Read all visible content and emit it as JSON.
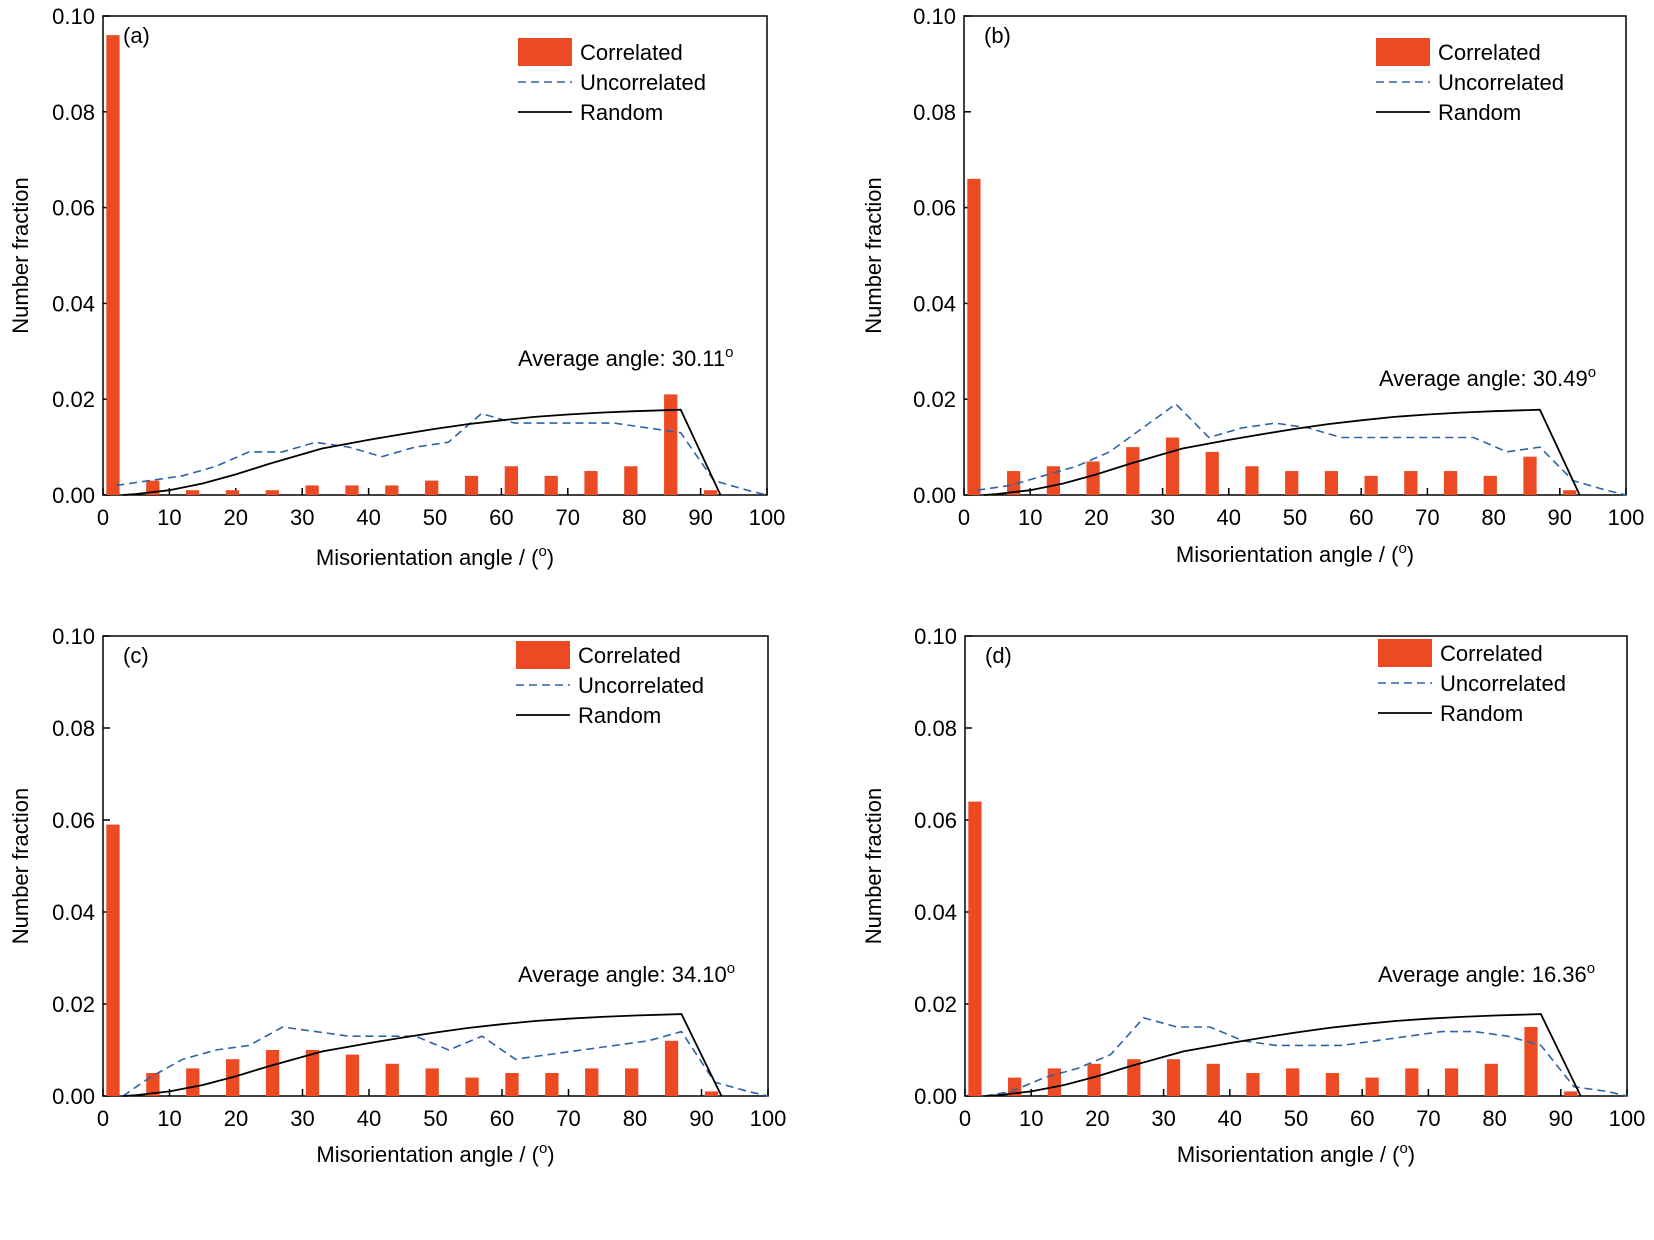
{
  "colors": {
    "correlated": "#ec4a23",
    "uncorrelated": "#2e63a6",
    "random": "#000000",
    "axis": "#000000"
  },
  "chart_data": [
    {
      "type": "bar",
      "panel_label": "(a)",
      "xlabel": "Misorientation angle / (",
      "xlabel_sup": "o",
      "xlabel_tail": ")",
      "ylabel": "Number fraction",
      "xlim": [
        0,
        100
      ],
      "ylim": [
        0,
        0.1
      ],
      "xticks": [
        "0",
        "10",
        "20",
        "30",
        "40",
        "50",
        "60",
        "70",
        "80",
        "90",
        "100"
      ],
      "yticks": [
        "0.00",
        "0.02",
        "0.04",
        "0.06",
        "0.08",
        "0.10"
      ],
      "legend": [
        {
          "name": "Correlated",
          "style": "bar"
        },
        {
          "name": "Uncorrelated",
          "style": "dashed"
        },
        {
          "name": "Random",
          "style": "solid"
        }
      ],
      "annotation": "Average angle: 30.11",
      "annotation_sup": "o",
      "series": [
        {
          "name": "Correlated",
          "kind": "bar",
          "x": [
            1.5,
            7.5,
            13.5,
            19.5,
            25.5,
            31.5,
            37.5,
            43.5,
            49.5,
            55.5,
            61.5,
            67.5,
            73.5,
            79.5,
            85.5,
            91.5
          ],
          "values": [
            0.096,
            0.003,
            0.001,
            0.001,
            0.001,
            0.002,
            0.002,
            0.002,
            0.003,
            0.004,
            0.006,
            0.004,
            0.005,
            0.006,
            0.021,
            0.001
          ]
        },
        {
          "name": "Uncorrelated",
          "kind": "line",
          "x": [
            2,
            7,
            12,
            17,
            22,
            27,
            32,
            37,
            42,
            47,
            52,
            57,
            62,
            67,
            72,
            77,
            82,
            87,
            92,
            97,
            100
          ],
          "values": [
            0.002,
            0.003,
            0.004,
            0.006,
            0.009,
            0.009,
            0.011,
            0.01,
            0.008,
            0.01,
            0.011,
            0.017,
            0.015,
            0.015,
            0.015,
            0.015,
            0.014,
            0.013,
            0.003,
            0.001,
            0
          ]
        },
        {
          "name": "Random",
          "kind": "line",
          "x": [
            3,
            5,
            10,
            15,
            20,
            25,
            30,
            33,
            40,
            45,
            50,
            55,
            60,
            65,
            70,
            75,
            80,
            87,
            93
          ],
          "values": [
            0,
            0.0002,
            0.001,
            0.0024,
            0.0043,
            0.0065,
            0.0085,
            0.0097,
            0.0115,
            0.0127,
            0.0138,
            0.0148,
            0.0156,
            0.0163,
            0.0168,
            0.0172,
            0.0175,
            0.0178,
            0
          ]
        }
      ]
    },
    {
      "type": "bar",
      "panel_label": "(b)",
      "xlabel": "Misorientation angle / (",
      "xlabel_sup": "o",
      "xlabel_tail": ")",
      "ylabel": "Number fraction",
      "xlim": [
        0,
        100
      ],
      "ylim": [
        0,
        0.1
      ],
      "xticks": [
        "0",
        "10",
        "20",
        "30",
        "40",
        "50",
        "60",
        "70",
        "80",
        "90",
        "100"
      ],
      "yticks": [
        "0.00",
        "0.02",
        "0.04",
        "0.06",
        "0.08",
        "0.10"
      ],
      "legend": [
        {
          "name": "Correlated",
          "style": "bar"
        },
        {
          "name": "Uncorrelated",
          "style": "dashed"
        },
        {
          "name": "Random",
          "style": "solid"
        }
      ],
      "annotation": "Average angle: 30.49",
      "annotation_sup": "o",
      "series": [
        {
          "name": "Correlated",
          "kind": "bar",
          "x": [
            1.5,
            7.5,
            13.5,
            19.5,
            25.5,
            31.5,
            37.5,
            43.5,
            49.5,
            55.5,
            61.5,
            67.5,
            73.5,
            79.5,
            85.5,
            91.5
          ],
          "values": [
            0.066,
            0.005,
            0.006,
            0.007,
            0.01,
            0.012,
            0.009,
            0.006,
            0.005,
            0.005,
            0.004,
            0.005,
            0.005,
            0.004,
            0.008,
            0.001
          ]
        },
        {
          "name": "Uncorrelated",
          "kind": "line",
          "x": [
            2,
            7,
            12,
            17,
            22,
            27,
            32,
            37,
            42,
            47,
            52,
            57,
            62,
            67,
            72,
            77,
            82,
            87,
            92,
            97,
            100
          ],
          "values": [
            0.001,
            0.002,
            0.004,
            0.006,
            0.009,
            0.014,
            0.019,
            0.012,
            0.014,
            0.015,
            0.014,
            0.012,
            0.012,
            0.012,
            0.012,
            0.012,
            0.009,
            0.01,
            0.003,
            0.001,
            0
          ]
        },
        {
          "name": "Random",
          "kind": "line",
          "x": [
            3,
            5,
            10,
            15,
            20,
            25,
            30,
            33,
            40,
            45,
            50,
            55,
            60,
            65,
            70,
            75,
            80,
            87,
            93
          ],
          "values": [
            0,
            0.0002,
            0.001,
            0.0024,
            0.0043,
            0.0065,
            0.0085,
            0.0097,
            0.0115,
            0.0127,
            0.0138,
            0.0148,
            0.0156,
            0.0163,
            0.0168,
            0.0172,
            0.0175,
            0.0178,
            0
          ]
        }
      ]
    },
    {
      "type": "bar",
      "panel_label": "(c)",
      "xlabel": "Misorientation angle / (",
      "xlabel_sup": "o",
      "xlabel_tail": ")",
      "ylabel": "Number fraction",
      "xlim": [
        0,
        100
      ],
      "ylim": [
        0,
        0.1
      ],
      "xticks": [
        "0",
        "10",
        "20",
        "30",
        "40",
        "50",
        "60",
        "70",
        "80",
        "90",
        "100"
      ],
      "yticks": [
        "0.00",
        "0.02",
        "0.04",
        "0.06",
        "0.08",
        "0.10"
      ],
      "legend": [
        {
          "name": "Correlated",
          "style": "bar"
        },
        {
          "name": "Uncorrelated",
          "style": "dashed"
        },
        {
          "name": "Random",
          "style": "solid"
        }
      ],
      "annotation": "Average angle: 34.10",
      "annotation_sup": "o",
      "series": [
        {
          "name": "Correlated",
          "kind": "bar",
          "x": [
            1.5,
            7.5,
            13.5,
            19.5,
            25.5,
            31.5,
            37.5,
            43.5,
            49.5,
            55.5,
            61.5,
            67.5,
            73.5,
            79.5,
            85.5,
            91.5
          ],
          "values": [
            0.059,
            0.005,
            0.006,
            0.008,
            0.01,
            0.01,
            0.009,
            0.007,
            0.006,
            0.004,
            0.005,
            0.005,
            0.006,
            0.006,
            0.012,
            0.001
          ]
        },
        {
          "name": "Uncorrelated",
          "kind": "line",
          "x": [
            3,
            7,
            12,
            17,
            22,
            27,
            32,
            37,
            42,
            47,
            52,
            57,
            62,
            67,
            72,
            77,
            82,
            87,
            92,
            97,
            100
          ],
          "values": [
            0,
            0.004,
            0.008,
            0.01,
            0.011,
            0.015,
            0.014,
            0.013,
            0.013,
            0.013,
            0.01,
            0.013,
            0.008,
            0.009,
            0.01,
            0.011,
            0.012,
            0.014,
            0.003,
            0.001,
            0
          ]
        },
        {
          "name": "Random",
          "kind": "line",
          "x": [
            3,
            5,
            10,
            15,
            20,
            25,
            30,
            33,
            40,
            45,
            50,
            55,
            60,
            65,
            70,
            75,
            80,
            87,
            93
          ],
          "values": [
            0,
            0.0002,
            0.001,
            0.0024,
            0.0043,
            0.0065,
            0.0085,
            0.0097,
            0.0115,
            0.0127,
            0.0138,
            0.0148,
            0.0156,
            0.0163,
            0.0168,
            0.0172,
            0.0175,
            0.0178,
            0
          ]
        }
      ]
    },
    {
      "type": "bar",
      "panel_label": "(d)",
      "xlabel": "Misorientation angle / (",
      "xlabel_sup": "o",
      "xlabel_tail": ")",
      "ylabel": "Number fraction",
      "xlim": [
        0,
        100
      ],
      "ylim": [
        0,
        0.1
      ],
      "xticks": [
        "0",
        "10",
        "20",
        "30",
        "40",
        "50",
        "60",
        "70",
        "80",
        "90",
        "100"
      ],
      "yticks": [
        "0.00",
        "0.02",
        "0.04",
        "0.06",
        "0.08",
        "0.10"
      ],
      "legend": [
        {
          "name": "Correlated",
          "style": "bar"
        },
        {
          "name": "Uncorrelated",
          "style": "dashed"
        },
        {
          "name": "Random",
          "style": "solid"
        }
      ],
      "annotation": "Average angle: 16.36",
      "annotation_sup": "o",
      "series": [
        {
          "name": "Correlated",
          "kind": "bar",
          "x": [
            1.5,
            7.5,
            13.5,
            19.5,
            25.5,
            31.5,
            37.5,
            43.5,
            49.5,
            55.5,
            61.5,
            67.5,
            73.5,
            79.5,
            85.5,
            91.5
          ],
          "values": [
            0.064,
            0.004,
            0.006,
            0.007,
            0.008,
            0.008,
            0.007,
            0.005,
            0.006,
            0.005,
            0.004,
            0.006,
            0.006,
            0.007,
            0.015,
            0.001
          ]
        },
        {
          "name": "Uncorrelated",
          "kind": "line",
          "x": [
            3,
            7,
            12,
            17,
            22,
            27,
            32,
            37,
            42,
            47,
            52,
            57,
            62,
            67,
            72,
            77,
            82,
            87,
            92,
            97,
            100
          ],
          "values": [
            0,
            0.001,
            0.004,
            0.006,
            0.009,
            0.017,
            0.015,
            0.015,
            0.012,
            0.011,
            0.011,
            0.011,
            0.012,
            0.013,
            0.014,
            0.014,
            0.013,
            0.011,
            0.002,
            0.001,
            0
          ]
        },
        {
          "name": "Random",
          "kind": "line",
          "x": [
            3,
            5,
            10,
            15,
            20,
            25,
            30,
            33,
            40,
            45,
            50,
            55,
            60,
            65,
            70,
            75,
            80,
            87,
            93
          ],
          "values": [
            0,
            0.0002,
            0.001,
            0.0024,
            0.0043,
            0.0065,
            0.0085,
            0.0097,
            0.0115,
            0.0127,
            0.0138,
            0.0148,
            0.0156,
            0.0163,
            0.0168,
            0.0172,
            0.0175,
            0.0178,
            0
          ]
        }
      ]
    }
  ]
}
